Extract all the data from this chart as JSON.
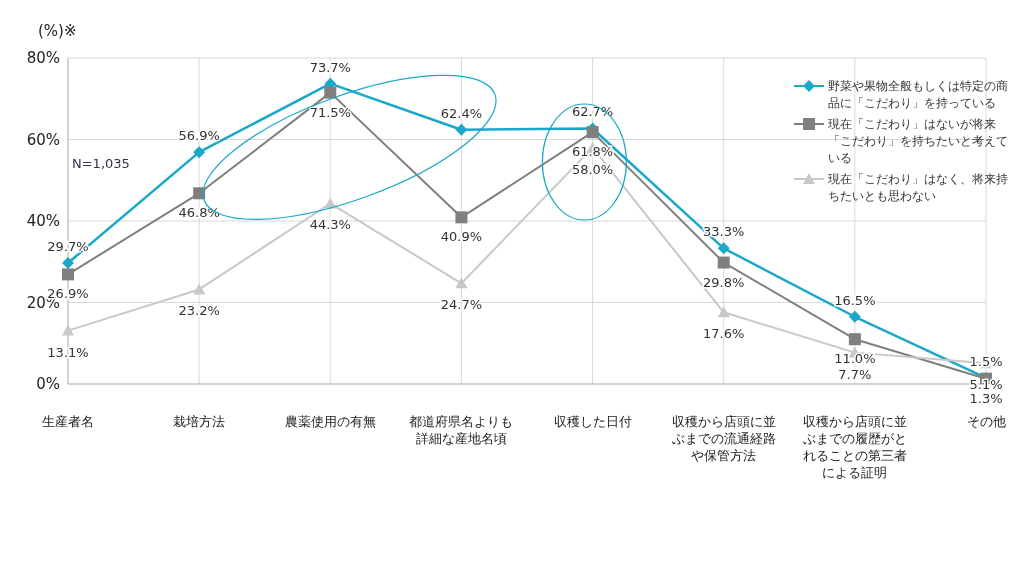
{
  "chart_data": {
    "type": "line",
    "categories": [
      "生産者名",
      "栽培方法",
      "農薬使用の有無",
      "都道府県名よりも詳細な産地名頃",
      "収穫した日付",
      "収穫から店頭に並ぶまでの流通経路や保管方法",
      "収穫から店頭に並ぶまでの履歴がとれることの第三者による証明",
      "その他"
    ],
    "series": [
      {
        "name": "野菜や果物全般もしくは特定の商品に「こだわり」を持っている",
        "color": "#1aa7c9",
        "marker": "diamond",
        "values": [
          29.7,
          56.9,
          73.7,
          62.4,
          62.7,
          33.3,
          16.5,
          1.5
        ],
        "value_labels": [
          "29.7%",
          "56.9%",
          "73.7%",
          "62.4%",
          "62.7%",
          "33.3%",
          "16.5%",
          "1.5%"
        ]
      },
      {
        "name": "現在「こだわり」はないが将来「こだわり」を持ちたいと考えている",
        "color": "#7f7f7f",
        "marker": "square",
        "values": [
          26.9,
          46.8,
          71.5,
          40.9,
          61.8,
          29.8,
          11.0,
          1.3
        ],
        "value_labels": [
          "26.9%",
          "46.8%",
          "71.5%",
          "40.9%",
          "61.8%",
          "29.8%",
          "11.0%",
          "1.3%"
        ]
      },
      {
        "name": "現在「こだわり」はなく、将来持ちたいとも思わない",
        "color": "#c8c8c8",
        "marker": "triangle",
        "values": [
          13.1,
          23.2,
          44.3,
          24.7,
          58.0,
          17.6,
          7.7,
          5.1
        ],
        "value_labels": [
          "13.1%",
          "23.2%",
          "44.3%",
          "24.7%",
          "58.0%",
          "17.6%",
          "7.7%",
          "5.1%"
        ]
      }
    ],
    "ylim": [
      0,
      80
    ],
    "yticks": [
      {
        "value": 0,
        "label": "0%"
      },
      {
        "value": 20,
        "label": "20%"
      },
      {
        "value": 40,
        "label": "40%"
      },
      {
        "value": 60,
        "label": "60%"
      },
      {
        "value": 80,
        "label": "80%"
      }
    ],
    "grid": true,
    "legend": "top right",
    "line_style": "solid",
    "annotations": [
      "(%)※",
      "N=1,035"
    ]
  }
}
